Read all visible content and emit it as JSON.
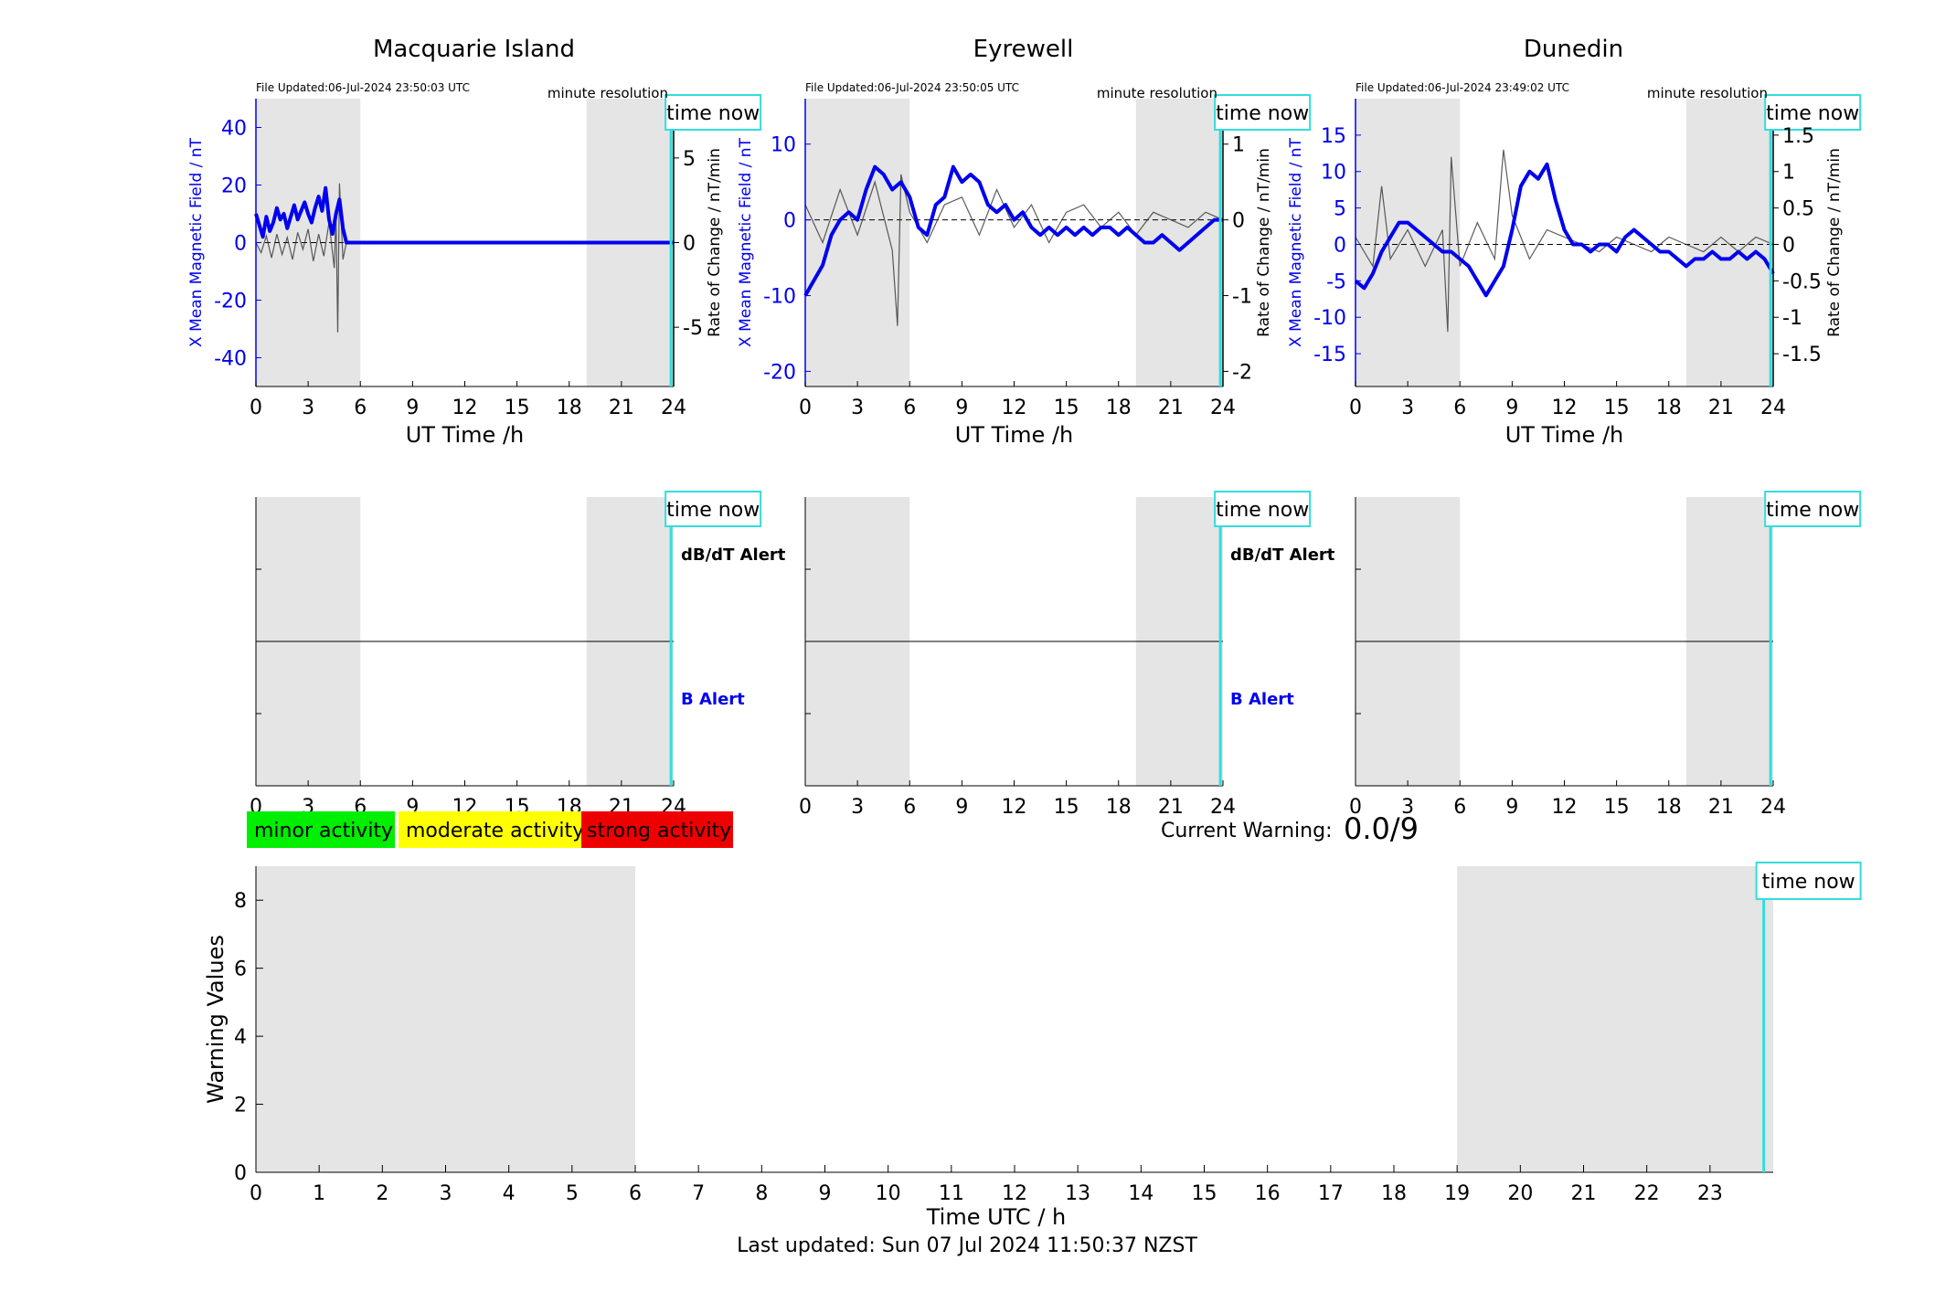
{
  "stations": [
    {
      "name": "Macquarie Island",
      "file_updated": "File Updated:06-Jul-2024 23:50:03 UTC",
      "resolution": "minute resolution",
      "time_now_label": "time now",
      "left_ylabel": "X Mean Magnetic Field / nT",
      "right_ylabel": "Rate of Change / nT/min",
      "xlabel": "UT Time /h",
      "left_ticks": [
        "40",
        "20",
        "0",
        "-20",
        "-40"
      ],
      "right_ticks": [
        "5",
        "0",
        "-5"
      ],
      "dbdt_alert": "dB/dT Alert",
      "b_alert": "B Alert"
    },
    {
      "name": "Eyrewell",
      "file_updated": "File Updated:06-Jul-2024 23:50:05 UTC",
      "resolution": "minute resolution",
      "time_now_label": "time now",
      "left_ylabel": "X Mean Magnetic Field / nT",
      "right_ylabel": "Rate of Change / nT/min",
      "xlabel": "UT Time /h",
      "left_ticks": [
        "10",
        "0",
        "-10",
        "-20"
      ],
      "right_ticks": [
        "1",
        "0",
        "-1",
        "-2"
      ],
      "dbdt_alert": "dB/dT Alert",
      "b_alert": "B Alert"
    },
    {
      "name": "Dunedin",
      "file_updated": "File Updated:06-Jul-2024 23:49:02 UTC",
      "resolution": "minute resolution",
      "time_now_label": "time now",
      "left_ylabel": "X Mean Magnetic Field / nT",
      "right_ylabel": "Rate of Change / nT/min",
      "xlabel": "UT Time /h",
      "left_ticks": [
        "15",
        "10",
        "5",
        "0",
        "-5",
        "-10",
        "-15"
      ],
      "right_ticks": [
        "1.5",
        "1",
        "0.5",
        "0",
        "-0.5",
        "-1",
        "-1.5"
      ],
      "dbdt_alert": "",
      "b_alert": ""
    }
  ],
  "hour_ticks": [
    "0",
    "3",
    "6",
    "9",
    "12",
    "15",
    "18",
    "21",
    "24"
  ],
  "legend": {
    "minor": "minor activity",
    "moderate": "moderate activity",
    "strong": "strong activity"
  },
  "current_warning": {
    "label": "Current Warning:",
    "value": "0.0/9"
  },
  "warning_panel": {
    "time_now_label": "time now",
    "ylabel": "Warning Values",
    "xlabel": "Time UTC / h",
    "y_ticks": [
      "0",
      "2",
      "4",
      "6",
      "8"
    ],
    "x_ticks": [
      "0",
      "1",
      "2",
      "3",
      "4",
      "5",
      "6",
      "7",
      "8",
      "9",
      "10",
      "11",
      "12",
      "13",
      "14",
      "15",
      "16",
      "17",
      "18",
      "19",
      "20",
      "21",
      "22",
      "23"
    ]
  },
  "last_updated": "Last updated: Sun 07 Jul 2024 11:50:37 NZST",
  "colors": {
    "field_line": "#0000ee",
    "rate_line": "#333333",
    "night_shade": "#e5e5e5",
    "time_now": "#33dddd",
    "minor": "#00ee00",
    "moderate": "#ffff00",
    "strong": "#ee0000"
  },
  "chart_data": [
    {
      "type": "line",
      "title": "Macquarie Island",
      "xlabel": "UT Time /h",
      "ylabel": "X Mean Magnetic Field / nT",
      "y2label": "Rate of Change / nT/min",
      "xlim": [
        0,
        24
      ],
      "ylim": [
        -50,
        50
      ],
      "y2lim": [
        -8.5,
        8.5
      ],
      "night_shading_hours": [
        [
          0,
          6
        ],
        [
          19,
          24
        ]
      ],
      "time_now_hour": 23.85,
      "field_x": [
        0,
        0.2,
        0.4,
        0.6,
        0.8,
        1.0,
        1.2,
        1.4,
        1.6,
        1.8,
        2.0,
        2.2,
        2.4,
        2.6,
        2.8,
        3.0,
        3.2,
        3.4,
        3.6,
        3.8,
        4.0,
        4.2,
        4.4,
        4.6,
        4.8,
        5.0,
        5.2,
        6,
        8,
        10,
        12,
        14,
        16,
        18,
        20,
        22,
        24
      ],
      "field_y": [
        10,
        6,
        2,
        9,
        4,
        7,
        12,
        8,
        10,
        5,
        9,
        13,
        8,
        11,
        14,
        10,
        7,
        12,
        16,
        11,
        19,
        8,
        3,
        10,
        15,
        5,
        0,
        0,
        0,
        0,
        0,
        0,
        0,
        0,
        0,
        0,
        0
      ],
      "rate_x": [
        0,
        0.3,
        0.6,
        0.9,
        1.2,
        1.5,
        1.8,
        2.1,
        2.4,
        2.7,
        3.0,
        3.3,
        3.6,
        3.9,
        4.2,
        4.5,
        4.6,
        4.7,
        4.8,
        5.0,
        5.2,
        24
      ],
      "rate_y": [
        0,
        -0.6,
        0.4,
        -0.9,
        0.5,
        -0.7,
        0.3,
        -1.0,
        0.6,
        -0.4,
        0.8,
        -1.1,
        0.5,
        -0.8,
        1.2,
        -1.5,
        1.8,
        -5.3,
        3.5,
        -1.0,
        0,
        0
      ]
    },
    {
      "type": "line",
      "title": "Eyrewell",
      "xlabel": "UT Time /h",
      "ylabel": "X Mean Magnetic Field / nT",
      "y2label": "Rate of Change / nT/min",
      "xlim": [
        0,
        24
      ],
      "ylim": [
        -22,
        16
      ],
      "y2lim": [
        -2.2,
        1.6
      ],
      "night_shading_hours": [
        [
          0,
          6
        ],
        [
          19,
          24
        ]
      ],
      "time_now_hour": 23.85,
      "field_x": [
        0,
        0.5,
        1.0,
        1.5,
        2.0,
        2.5,
        3.0,
        3.5,
        4.0,
        4.5,
        5.0,
        5.5,
        6.0,
        6.5,
        7.0,
        7.5,
        8.0,
        8.5,
        9.0,
        9.5,
        10.0,
        10.5,
        11.0,
        11.5,
        12.0,
        12.5,
        13.0,
        13.5,
        14.0,
        14.5,
        15.0,
        15.5,
        16.0,
        16.5,
        17.0,
        17.5,
        18.0,
        18.5,
        19.0,
        19.5,
        20.0,
        20.5,
        21.0,
        21.5,
        22.0,
        22.5,
        23.0,
        23.5,
        24.0
      ],
      "field_y": [
        -10,
        -8,
        -6,
        -2,
        0,
        1,
        0,
        4,
        7,
        6,
        4,
        5,
        3,
        -1,
        -2,
        2,
        3,
        7,
        5,
        6,
        5,
        2,
        1,
        2,
        0,
        1,
        -1,
        -2,
        -1,
        -2,
        -1,
        -2,
        -1,
        -2,
        -1,
        -1,
        -2,
        -1,
        -2,
        -3,
        -3,
        -2,
        -3,
        -4,
        -3,
        -2,
        -1,
        0,
        0
      ],
      "rate_x": [
        0,
        1,
        2,
        3,
        4,
        5,
        5.3,
        5.5,
        6,
        7,
        8,
        9,
        10,
        11,
        12,
        13,
        14,
        15,
        16,
        17,
        18,
        19,
        20,
        21,
        22,
        23,
        24
      ],
      "rate_y": [
        0.2,
        -0.3,
        0.4,
        -0.2,
        0.5,
        -0.4,
        -1.4,
        0.6,
        0.1,
        -0.3,
        0.2,
        0.3,
        -0.2,
        0.4,
        -0.1,
        0.2,
        -0.3,
        0.1,
        0.2,
        -0.1,
        0.1,
        -0.2,
        0.1,
        0.0,
        -0.1,
        0.1,
        0.0
      ]
    },
    {
      "type": "line",
      "title": "Dunedin",
      "xlabel": "UT Time /h",
      "ylabel": "X Mean Magnetic Field / nT",
      "y2label": "Rate of Change / nT/min",
      "xlim": [
        0,
        24
      ],
      "ylim": [
        -19.5,
        20
      ],
      "y2lim": [
        -1.95,
        2.0
      ],
      "night_shading_hours": [
        [
          0,
          6
        ],
        [
          19,
          24
        ]
      ],
      "time_now_hour": 23.85,
      "field_x": [
        0,
        0.5,
        1.0,
        1.5,
        2.0,
        2.5,
        3.0,
        3.5,
        4.0,
        4.5,
        5.0,
        5.5,
        6.0,
        6.5,
        7.0,
        7.5,
        8.0,
        8.5,
        9.0,
        9.5,
        10.0,
        10.5,
        11.0,
        11.5,
        12.0,
        12.5,
        13.0,
        13.5,
        14.0,
        14.5,
        15.0,
        15.5,
        16.0,
        16.5,
        17.0,
        17.5,
        18.0,
        18.5,
        19.0,
        19.5,
        20.0,
        20.5,
        21.0,
        21.5,
        22.0,
        22.5,
        23.0,
        23.5,
        24.0
      ],
      "field_y": [
        -5,
        -6,
        -4,
        -1,
        1,
        3,
        3,
        2,
        1,
        0,
        -1,
        -1,
        -2,
        -3,
        -5,
        -7,
        -5,
        -3,
        2,
        8,
        10,
        9,
        11,
        6,
        2,
        0,
        0,
        -1,
        0,
        0,
        -1,
        1,
        2,
        1,
        0,
        -1,
        -1,
        -2,
        -3,
        -2,
        -2,
        -1,
        -2,
        -2,
        -1,
        -2,
        -1,
        -2,
        -4
      ],
      "rate_x": [
        0,
        1,
        1.5,
        2,
        3,
        4,
        5,
        5.3,
        5.5,
        6,
        7,
        8,
        8.5,
        9,
        10,
        11,
        12,
        13,
        14,
        15,
        16,
        17,
        18,
        19,
        20,
        21,
        22,
        23,
        24
      ],
      "rate_y": [
        0.1,
        -0.3,
        0.8,
        -0.2,
        0.2,
        -0.3,
        0.2,
        -1.2,
        1.2,
        -0.3,
        0.3,
        -0.2,
        1.3,
        0.4,
        -0.2,
        0.2,
        0.1,
        0.0,
        -0.1,
        0.1,
        0.0,
        -0.1,
        0.1,
        0.0,
        -0.1,
        0.1,
        -0.1,
        0.1,
        0.0
      ]
    },
    {
      "type": "bar",
      "title": "",
      "xlabel": "Time UTC / h",
      "ylabel": "Warning Values",
      "xlim": [
        0,
        24
      ],
      "ylim": [
        0,
        9
      ],
      "night_shading_hours": [
        [
          0,
          6
        ],
        [
          19,
          24
        ]
      ],
      "time_now_hour": 23.85,
      "categories": [],
      "values": []
    }
  ]
}
